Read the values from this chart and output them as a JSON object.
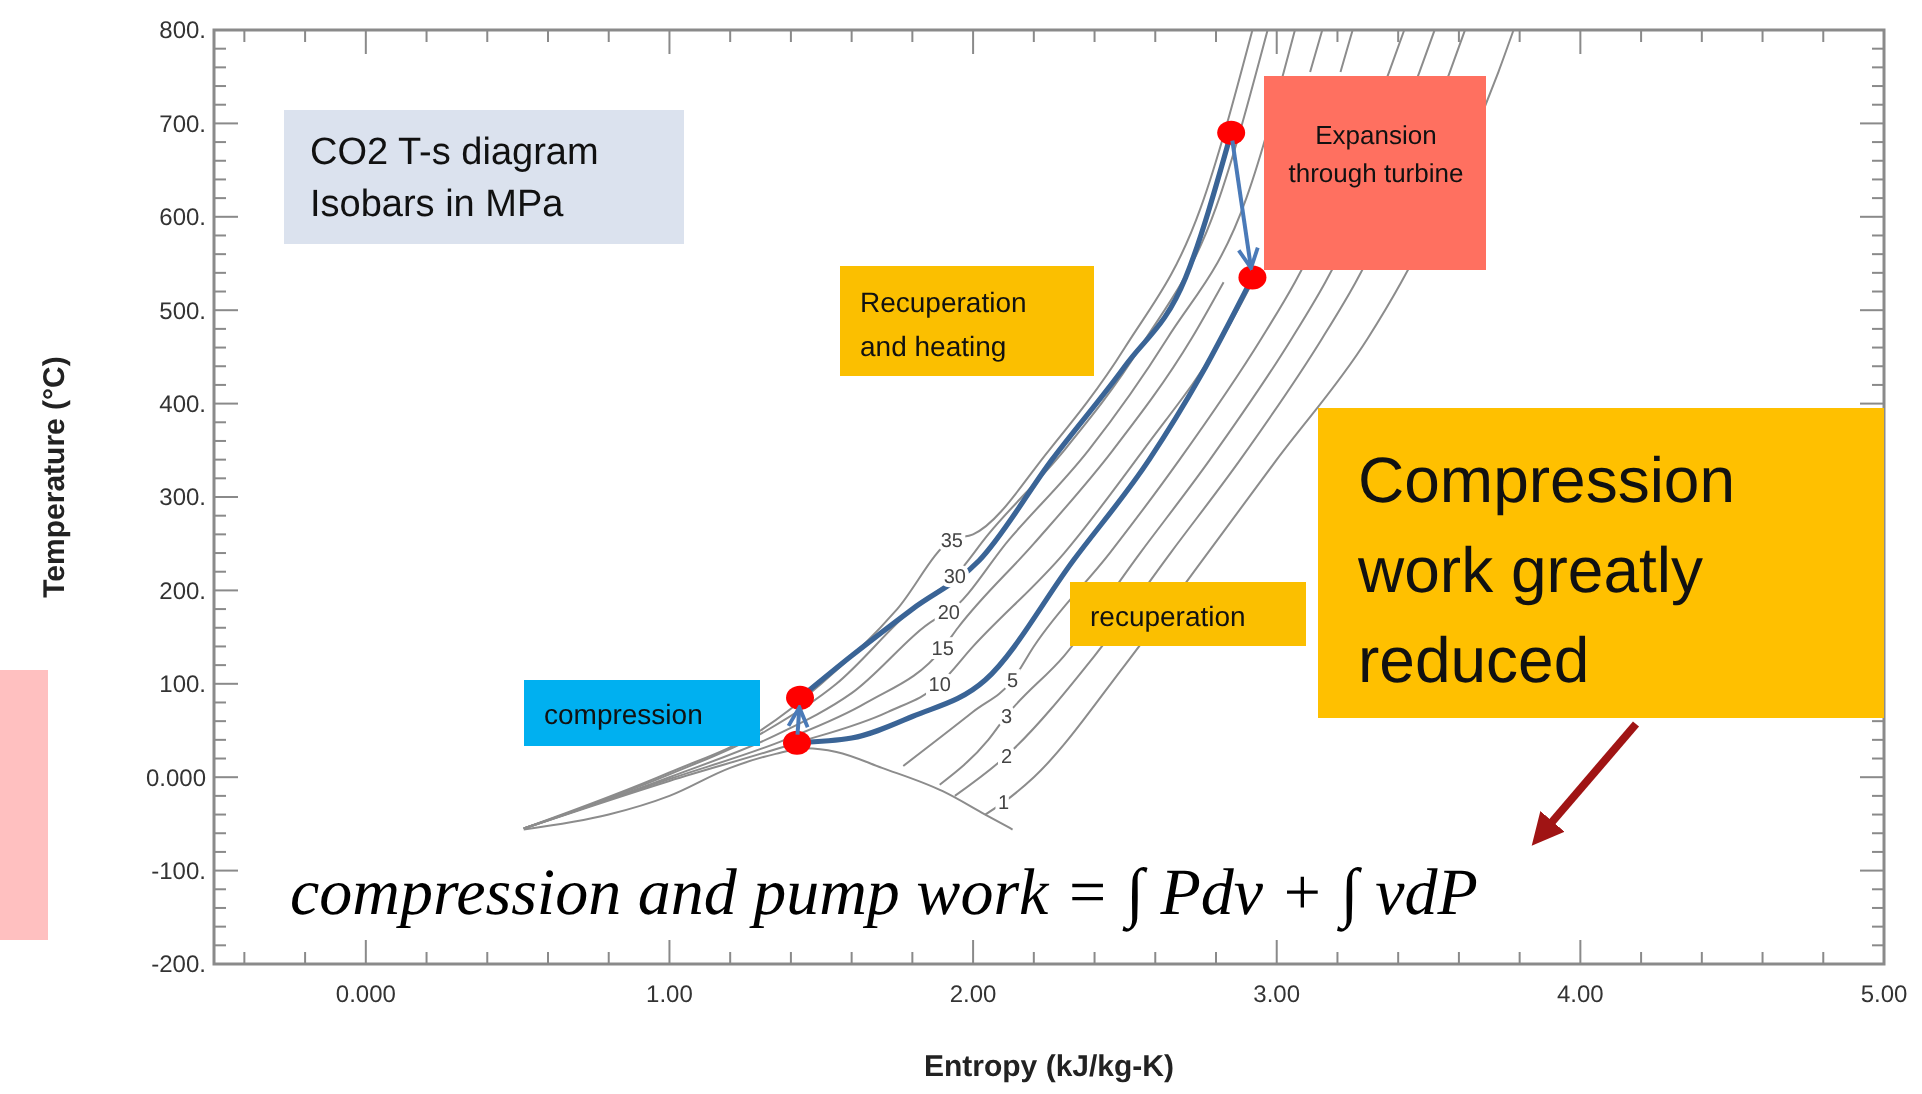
{
  "chart_data": {
    "type": "line",
    "xlabel": "Entropy (kJ/kg-K)",
    "ylabel": "Temperature (°C)",
    "xlim": [
      -0.5,
      5
    ],
    "ylim": [
      -200,
      800
    ],
    "xticks": [
      {
        "value": -0.4,
        "label": null
      },
      {
        "value": -0.2,
        "label": null
      },
      {
        "value": 0,
        "label": "0.000"
      },
      {
        "value": 0.2,
        "label": null
      },
      {
        "value": 0.4,
        "label": null
      },
      {
        "value": 0.6,
        "label": null
      },
      {
        "value": 0.8,
        "label": null
      },
      {
        "value": 1,
        "label": "1.00"
      },
      {
        "value": 1.2,
        "label": null
      },
      {
        "value": 1.4,
        "label": null
      },
      {
        "value": 1.6,
        "label": null
      },
      {
        "value": 1.8,
        "label": null
      },
      {
        "value": 2,
        "label": "2.00"
      },
      {
        "value": 2.2,
        "label": null
      },
      {
        "value": 2.4,
        "label": null
      },
      {
        "value": 2.6,
        "label": null
      },
      {
        "value": 2.8,
        "label": null
      },
      {
        "value": 3,
        "label": "3.00"
      },
      {
        "value": 3.2,
        "label": null
      },
      {
        "value": 3.4,
        "label": null
      },
      {
        "value": 3.6,
        "label": null
      },
      {
        "value": 3.8,
        "label": null
      },
      {
        "value": 4,
        "label": "4.00"
      },
      {
        "value": 4.2,
        "label": null
      },
      {
        "value": 4.4,
        "label": null
      },
      {
        "value": 4.6,
        "label": null
      },
      {
        "value": 4.8,
        "label": null
      },
      {
        "value": 5,
        "label": "5.00"
      }
    ],
    "yticks": [
      {
        "value": -200,
        "label": "-200."
      },
      {
        "value": -180,
        "label": null
      },
      {
        "value": -160,
        "label": null
      },
      {
        "value": -140,
        "label": null
      },
      {
        "value": -120,
        "label": null
      },
      {
        "value": -100,
        "label": "-100."
      },
      {
        "value": -80,
        "label": null
      },
      {
        "value": -60,
        "label": null
      },
      {
        "value": -40,
        "label": null
      },
      {
        "value": -20,
        "label": null
      },
      {
        "value": 0,
        "label": "0.000"
      },
      {
        "value": 20,
        "label": null
      },
      {
        "value": 40,
        "label": null
      },
      {
        "value": 60,
        "label": null
      },
      {
        "value": 80,
        "label": null
      },
      {
        "value": 100,
        "label": "100."
      },
      {
        "value": 120,
        "label": null
      },
      {
        "value": 140,
        "label": null
      },
      {
        "value": 160,
        "label": null
      },
      {
        "value": 180,
        "label": null
      },
      {
        "value": 200,
        "label": "200."
      },
      {
        "value": 220,
        "label": null
      },
      {
        "value": 240,
        "label": null
      },
      {
        "value": 260,
        "label": null
      },
      {
        "value": 280,
        "label": null
      },
      {
        "value": 300,
        "label": "300."
      },
      {
        "value": 320,
        "label": null
      },
      {
        "value": 340,
        "label": null
      },
      {
        "value": 360,
        "label": null
      },
      {
        "value": 380,
        "label": null
      },
      {
        "value": 400,
        "label": "400."
      },
      {
        "value": 420,
        "label": null
      },
      {
        "value": 440,
        "label": null
      },
      {
        "value": 460,
        "label": null
      },
      {
        "value": 480,
        "label": null
      },
      {
        "value": 500,
        "label": "500."
      },
      {
        "value": 520,
        "label": null
      },
      {
        "value": 540,
        "label": null
      },
      {
        "value": 560,
        "label": null
      },
      {
        "value": 580,
        "label": null
      },
      {
        "value": 600,
        "label": "600."
      },
      {
        "value": 620,
        "label": null
      },
      {
        "value": 640,
        "label": null
      },
      {
        "value": 660,
        "label": null
      },
      {
        "value": 680,
        "label": null
      },
      {
        "value": 700,
        "label": "700."
      },
      {
        "value": 720,
        "label": null
      },
      {
        "value": 740,
        "label": null
      },
      {
        "value": 760,
        "label": null
      },
      {
        "value": 780,
        "label": null
      },
      {
        "value": 800,
        "label": "800."
      }
    ],
    "series": [
      {
        "color": "#8c8c8c",
        "x": [
          0.52,
          0.8,
          1.0,
          1.2,
          1.35,
          1.45,
          1.55,
          1.7,
          1.9,
          2.04,
          2.13
        ],
        "values": [
          -56,
          -40,
          -20,
          10,
          25,
          31,
          27,
          10,
          -15,
          -40,
          -56
        ]
      },
      {
        "color": "#8c8c8c",
        "x": [
          0.52,
          1.0,
          1.3,
          1.5,
          1.75,
          1.93,
          2.0,
          2.25,
          2.5,
          2.75,
          2.92
        ],
        "values": [
          -55,
          5,
          50,
          100,
          180,
          254,
          260,
          350,
          460,
          610,
          800
        ]
      },
      {
        "color": "#8c8c8c",
        "x": [
          0.52,
          1.0,
          1.32,
          1.55,
          1.8,
          1.94,
          2.05,
          2.3,
          2.55,
          2.8,
          2.97
        ],
        "values": [
          -55,
          3,
          50,
          100,
          180,
          215,
          260,
          350,
          460,
          610,
          800
        ]
      },
      {
        "color": "#8c8c8c",
        "x": [
          0.52,
          1.0,
          1.35,
          1.6,
          1.88,
          1.92,
          2.12,
          2.38,
          2.64,
          2.9,
          3.06
        ],
        "values": [
          -55,
          0,
          45,
          90,
          170,
          177,
          255,
          350,
          470,
          620,
          800
        ]
      },
      {
        "color": "#8c8c8c",
        "x": [
          0.52,
          1.0,
          1.38,
          1.65,
          1.9,
          1.95,
          2.2,
          2.46,
          2.72,
          2.825,
          3.0,
          3.11,
          3.15
        ],
        "values": [
          -55,
          -2,
          40,
          80,
          138,
          160,
          250,
          350,
          470,
          530,
          null,
          755,
          800
        ]
      },
      {
        "color": "#8c8c8c",
        "x": [
          0.52,
          1.0,
          1.4,
          1.72,
          1.89,
          2.0,
          2.3,
          2.56,
          2.82,
          2.92,
          3.1,
          3.21,
          3.25
        ],
        "values": [
          -55,
          -4,
          35,
          70,
          100,
          140,
          240,
          350,
          470,
          530,
          null,
          755,
          800
        ]
      },
      {
        "color": "#8c8c8c",
        "x": [
          1.77,
          2.0,
          2.13,
          2.2,
          2.45,
          2.68,
          2.95,
          3.06,
          3.37,
          3.42
        ],
        "values": [
          12,
          70,
          104,
          140,
          240,
          340,
          470,
          530,
          755,
          800
        ]
      },
      {
        "color": "#8c8c8c",
        "x": [
          1.89,
          2.05,
          2.11,
          2.3,
          2.55,
          2.78,
          3.05,
          3.16,
          3.47,
          3.52
        ],
        "values": [
          -8,
          40,
          66,
          130,
          240,
          340,
          470,
          530,
          755,
          800
        ]
      },
      {
        "color": "#8c8c8c",
        "x": [
          1.94,
          2.11,
          2.4,
          2.65,
          2.88,
          3.15,
          3.26,
          3.57,
          3.62
        ],
        "values": [
          -20,
          23,
          130,
          240,
          340,
          470,
          530,
          755,
          800
        ]
      },
      {
        "color": "#8c8c8c",
        "x": [
          2.04,
          2.1,
          2.2,
          2.5,
          2.75,
          3.0,
          3.3,
          3.41,
          3.73,
          3.78
        ],
        "values": [
          -40,
          -27,
          0,
          120,
          230,
          340,
          470,
          530,
          755,
          800
        ]
      },
      {
        "color": "#3a6496",
        "x": [
          1.43,
          1.6,
          1.8,
          2.02,
          2.26,
          2.5,
          2.7,
          2.85
        ],
        "values": [
          85,
          130,
          180,
          232,
          340,
          440,
          535,
          690
        ]
      },
      {
        "color": "#3a6496",
        "x": [
          1.42,
          1.6,
          1.8,
          2.04,
          2.33,
          2.58,
          2.75,
          2.92
        ],
        "values": [
          37,
          42,
          65,
          104,
          232,
          340,
          430,
          535
        ]
      },
      {
        "type": "scatter",
        "marker": "circle",
        "color": "#ff0000",
        "x": [
          1.43,
          1.42,
          2.85,
          2.92
        ],
        "values": [
          85,
          37,
          690,
          535
        ]
      }
    ],
    "annotations": [
      "CO2 T-s diagram\nIsobars in MPa",
      "Recuperation\nand heating",
      "Expansion\nthrough turbine",
      "compression",
      "recuperation",
      "Compression\nwork greatly\nreduced",
      "compression and pump work = ∫ Pdv + ∫ vdP",
      {
        "text": "35",
        "x": 1.93,
        "y": 254
      },
      {
        "text": "30",
        "x": 1.94,
        "y": 215
      },
      {
        "text": "20",
        "x": 1.92,
        "y": 177
      },
      {
        "text": "15",
        "x": 1.9,
        "y": 138
      },
      {
        "text": "10",
        "x": 1.89,
        "y": 100
      },
      {
        "text": "5",
        "x": 2.13,
        "y": 104
      },
      {
        "text": "3",
        "x": 2.11,
        "y": 66
      },
      {
        "text": "2",
        "x": 2.11,
        "y": 23
      },
      {
        "text": "1",
        "x": 2.1,
        "y": -27
      }
    ]
  }
}
